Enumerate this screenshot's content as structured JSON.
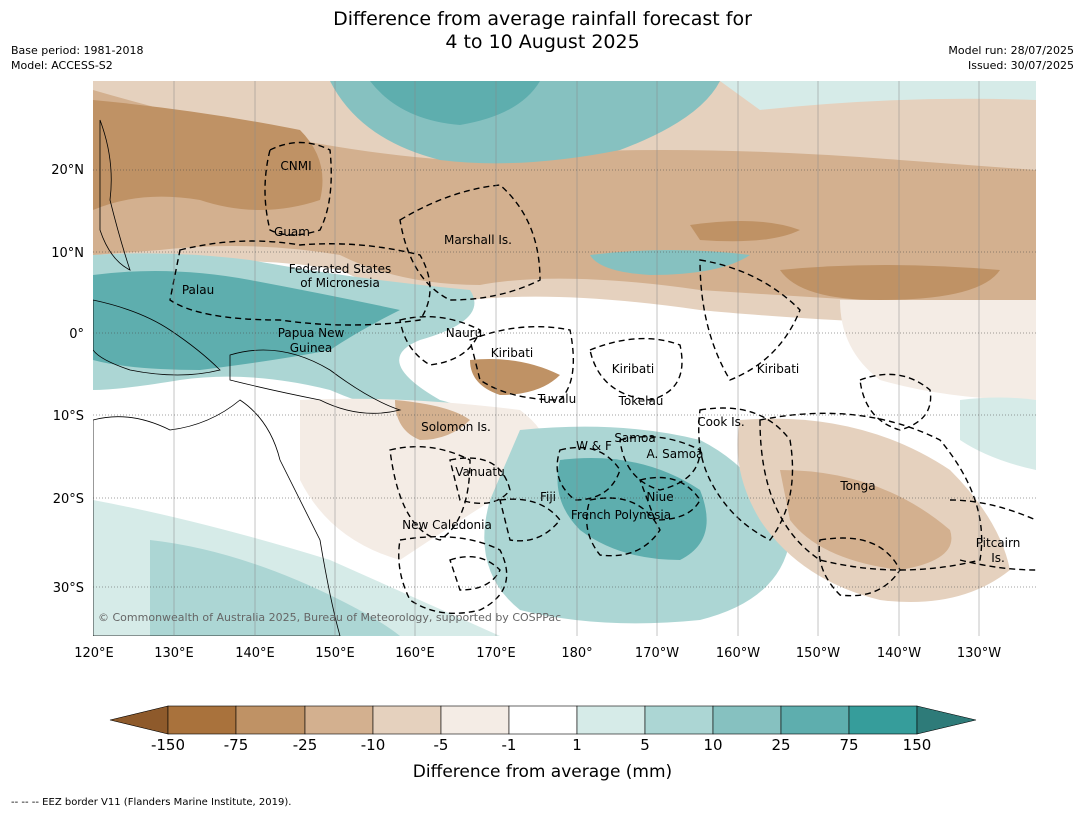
{
  "title": {
    "line1": "Difference from average rainfall forecast for",
    "line2": "4 to 10 August 2025"
  },
  "meta": {
    "base_period": "Base period: 1981-2018",
    "model": "Model: ACCESS-S2",
    "model_run": "Model run: 28/07/2025",
    "issued": "Issued: 30/07/2025"
  },
  "copyright": "© Commonwealth of Australia 2025, Bureau of Meteorology, supported by COSPPac",
  "axes": {
    "lon_labels": [
      "120°E",
      "130°E",
      "140°E",
      "150°E",
      "160°E",
      "170°E",
      "180°",
      "170°W",
      "160°W",
      "150°W",
      "140°W",
      "130°W"
    ],
    "lat_labels": [
      "20°N",
      "10°N",
      "0°",
      "10°S",
      "20°S",
      "30°S"
    ]
  },
  "regions": [
    {
      "name": "CNMI"
    },
    {
      "name": "Guam"
    },
    {
      "name": "Marshall Is."
    },
    {
      "name": "Federated States"
    },
    {
      "name": "of Micronesia"
    },
    {
      "name": "Palau"
    },
    {
      "name": "Papua New"
    },
    {
      "name": "Guinea"
    },
    {
      "name": "Nauru"
    },
    {
      "name": "Kiribati"
    },
    {
      "name": "Kiribati"
    },
    {
      "name": "Kiribati"
    },
    {
      "name": "Tuvalu"
    },
    {
      "name": "Tokelau"
    },
    {
      "name": "Cook Is."
    },
    {
      "name": "Solomon Is."
    },
    {
      "name": "Samoa"
    },
    {
      "name": "W & F"
    },
    {
      "name": "A. Samoa"
    },
    {
      "name": "Vanuatu"
    },
    {
      "name": "Fiji"
    },
    {
      "name": "Niue"
    },
    {
      "name": "Tonga"
    },
    {
      "name": "French Polynesia"
    },
    {
      "name": "New Caledonia"
    },
    {
      "name": "Pitcairn"
    },
    {
      "name": "Is."
    }
  ],
  "colorbar": {
    "title": "Difference from average (mm)",
    "ticks": [
      "-150",
      "-75",
      "-25",
      "-10",
      "-5",
      "-1",
      "1",
      "5",
      "10",
      "25",
      "75",
      "150"
    ],
    "colors": {
      "extend_low": "#8e5a2b",
      "c1": "#a9723c",
      "c2": "#bf9265",
      "c3": "#d3b08f",
      "c4": "#e5d1be",
      "c5": "#f4ece5",
      "c6": "#ffffff",
      "c7": "#d6ebe8",
      "c8": "#acd6d4",
      "c9": "#86c1c0",
      "c10": "#5eaeae",
      "c11": "#369d9b",
      "extend_high": "#2e7b79"
    }
  },
  "footnote": "--  --  -- EEZ border V11 (Flanders Marine Institute, 2019)."
}
